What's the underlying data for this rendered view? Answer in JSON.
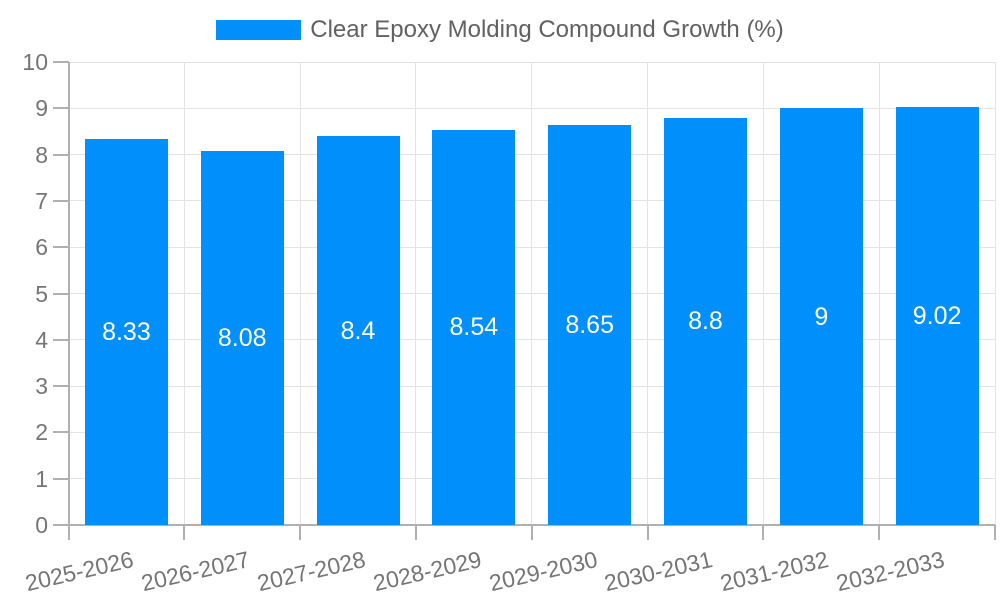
{
  "chart_data": {
    "type": "bar",
    "title": "Clear Epoxy Molding Compound Growth (%)",
    "categories": [
      "2025-2026",
      "2026-2027",
      "2027-2028",
      "2028-2029",
      "2029-2030",
      "2030-2031",
      "2031-2032",
      "2032-2033"
    ],
    "series": [
      {
        "name": "Clear Epoxy Molding Compound Growth (%)",
        "values": [
          8.33,
          8.08,
          8.4,
          8.54,
          8.65,
          8.8,
          9,
          9.02
        ]
      }
    ],
    "value_labels": [
      "8.33",
      "8.08",
      "8.4",
      "8.54",
      "8.65",
      "8.8",
      "9",
      "9.02"
    ],
    "xlabel": "",
    "ylabel": "",
    "ylim": [
      0,
      10
    ],
    "y_ticks": [
      0,
      1,
      2,
      3,
      4,
      5,
      6,
      7,
      8,
      9,
      10
    ],
    "grid": true,
    "legend_position": "top",
    "value_label_position": "inside-middle",
    "colors": {
      "bar": "#008FFB",
      "grid_line": "#e3e3e3",
      "axis_line": "#b0b0b0",
      "axis_label": "#757575",
      "legend_text": "#616161",
      "value_label": "#ffffff",
      "background": "#ffffff"
    }
  }
}
